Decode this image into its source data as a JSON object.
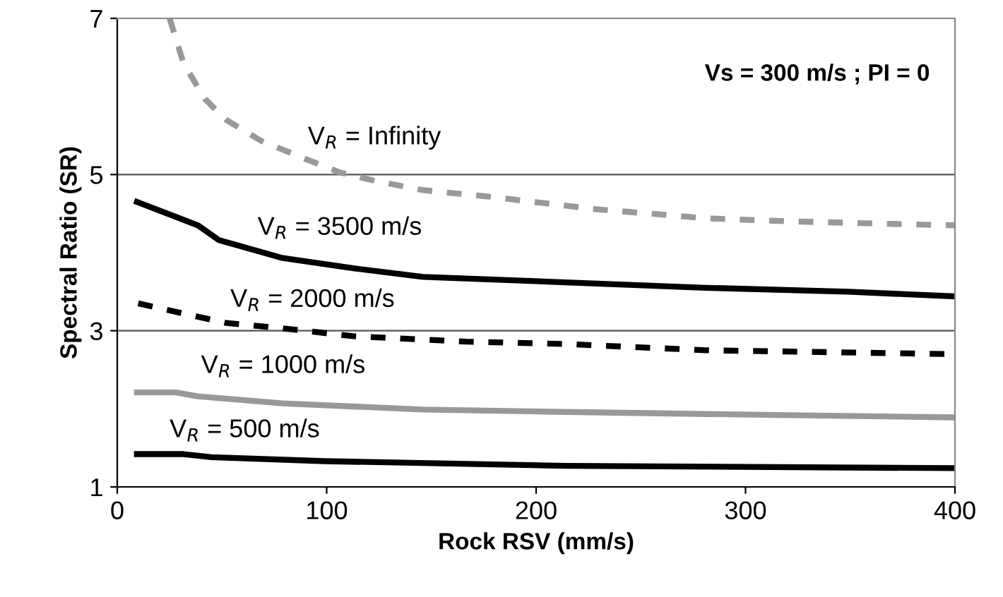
{
  "chart_data": {
    "type": "line",
    "xlabel": "Rock RSV (mm/s)",
    "ylabel": "Spectral Ratio (SR)",
    "xlim": [
      0,
      400
    ],
    "xticks": [
      0,
      100,
      200,
      300,
      400
    ],
    "ylim": [
      1,
      7
    ],
    "yticks": [
      1,
      3,
      5,
      7
    ],
    "grid": "y",
    "legend": false,
    "marker": "none",
    "series": [
      {
        "name": "V$_{R}$ = Infinity",
        "x": [
          25,
          31.7,
          41.8,
          52,
          68.8,
          89,
          106,
          123,
          146,
          180,
          227,
          281,
          322,
          382,
          400
        ],
        "values": [
          7.0,
          6.42,
          5.97,
          5.7,
          5.43,
          5.21,
          5.03,
          4.92,
          4.8,
          4.71,
          4.56,
          4.44,
          4.4,
          4.36,
          4.35
        ],
        "color": "#999999",
        "line_style": "dashed"
      },
      {
        "name": "V$_{R}$ = 3500 m/s",
        "x": [
          9.4,
          38.5,
          48.6,
          79,
          112.7,
          146,
          214,
          281,
          349,
          400
        ],
        "values": [
          4.65,
          4.35,
          4.16,
          3.93,
          3.8,
          3.69,
          3.62,
          3.55,
          3.5,
          3.44
        ],
        "color": "#000000",
        "line_style": "solid"
      },
      {
        "name": "V$_{R}$ = 2000 m/s",
        "x": [
          10,
          31.7,
          52,
          79,
          112.7,
          166.6,
          214,
          281,
          400
        ],
        "values": [
          3.35,
          3.22,
          3.1,
          3.03,
          2.93,
          2.86,
          2.83,
          2.75,
          2.7
        ],
        "color": "#000000",
        "line_style": "dashed"
      },
      {
        "name": "V$_{R}$ = 1000 m/s",
        "x": [
          9.4,
          28,
          38.5,
          79,
          146,
          214,
          315,
          400
        ],
        "values": [
          2.21,
          2.21,
          2.16,
          2.07,
          1.99,
          1.96,
          1.92,
          1.89
        ],
        "color": "#999999",
        "line_style": "solid"
      },
      {
        "name": "V$_{R}$ = 500 m/s",
        "x": [
          9.4,
          31.7,
          45,
          99,
          214,
          400
        ],
        "values": [
          1.42,
          1.42,
          1.38,
          1.33,
          1.27,
          1.24
        ],
        "color": "#000000",
        "line_style": "solid"
      }
    ],
    "annotations": [
      "Vs = 300 m/s ; PI = 0"
    ]
  }
}
